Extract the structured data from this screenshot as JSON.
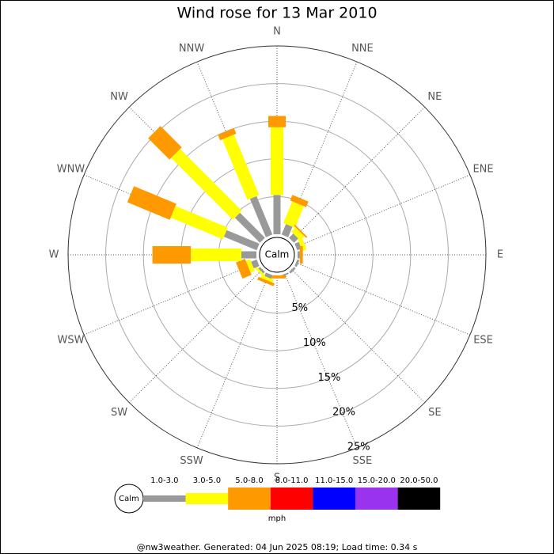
{
  "chart_data": {
    "type": "windrose",
    "title": "Wind rose for 13 Mar 2010",
    "categories": [
      "N",
      "NNE",
      "NE",
      "ENE",
      "E",
      "ESE",
      "SE",
      "SSE",
      "S",
      "SSW",
      "SW",
      "WSW",
      "W",
      "WNW",
      "NW",
      "NNW"
    ],
    "series": [
      {
        "name": "1.0-3.0",
        "color": "#999999",
        "values": [
          5.2,
          1.5,
          0.8,
          0.6,
          0.3,
          0.3,
          0.3,
          0.2,
          0,
          0.5,
          0.3,
          0.8,
          2.0,
          4.7,
          4.7,
          5.5
        ]
      },
      {
        "name": "3.0-5.0",
        "color": "#ffff00",
        "values": [
          9.0,
          3.1,
          0.8,
          0.6,
          0,
          0,
          0,
          0,
          0,
          0.4,
          0.3,
          0.6,
          6.7,
          7.5,
          11.6,
          8.7
        ]
      },
      {
        "name": "5.0-8.0",
        "color": "#ff9900",
        "values": [
          1.5,
          0.8,
          0.2,
          0,
          0.4,
          0,
          0,
          0,
          0.4,
          0.4,
          0,
          1.3,
          5.1,
          6.1,
          4.0,
          0.8
        ]
      },
      {
        "name": "8.0-11.0",
        "color": "#ff0000",
        "values": [
          0,
          0,
          0,
          0,
          0,
          0,
          0,
          0,
          0,
          0,
          0,
          0,
          0,
          0,
          0,
          0
        ]
      },
      {
        "name": "11.0-15.0",
        "color": "#0000ff",
        "values": [
          0,
          0,
          0,
          0,
          0,
          0,
          0,
          0,
          0,
          0,
          0,
          0,
          0,
          0,
          0,
          0
        ]
      },
      {
        "name": "15.0-20.0",
        "color": "#9933ee",
        "values": [
          0,
          0,
          0,
          0,
          0,
          0,
          0,
          0,
          0,
          0,
          0,
          0,
          0,
          0,
          0,
          0
        ]
      },
      {
        "name": "20.0-50.0",
        "color": "#000000",
        "values": [
          0,
          0,
          0,
          0,
          0,
          0,
          0,
          0,
          0,
          0,
          0,
          0,
          0,
          0,
          0,
          0
        ]
      }
    ],
    "ylim": [
      0,
      25
    ],
    "yticks": [
      {
        "value": 5,
        "label": "5%"
      },
      {
        "value": 10,
        "label": "10%"
      },
      {
        "value": 15,
        "label": "15%"
      },
      {
        "value": 20,
        "label": "20%"
      },
      {
        "value": 25,
        "label": "25%"
      }
    ],
    "calm_label": "Calm",
    "unit_label": "mph",
    "footer": "@nw3weather. Generated: 04 Jun 2025 08:19; Load time: 0.34 s"
  }
}
